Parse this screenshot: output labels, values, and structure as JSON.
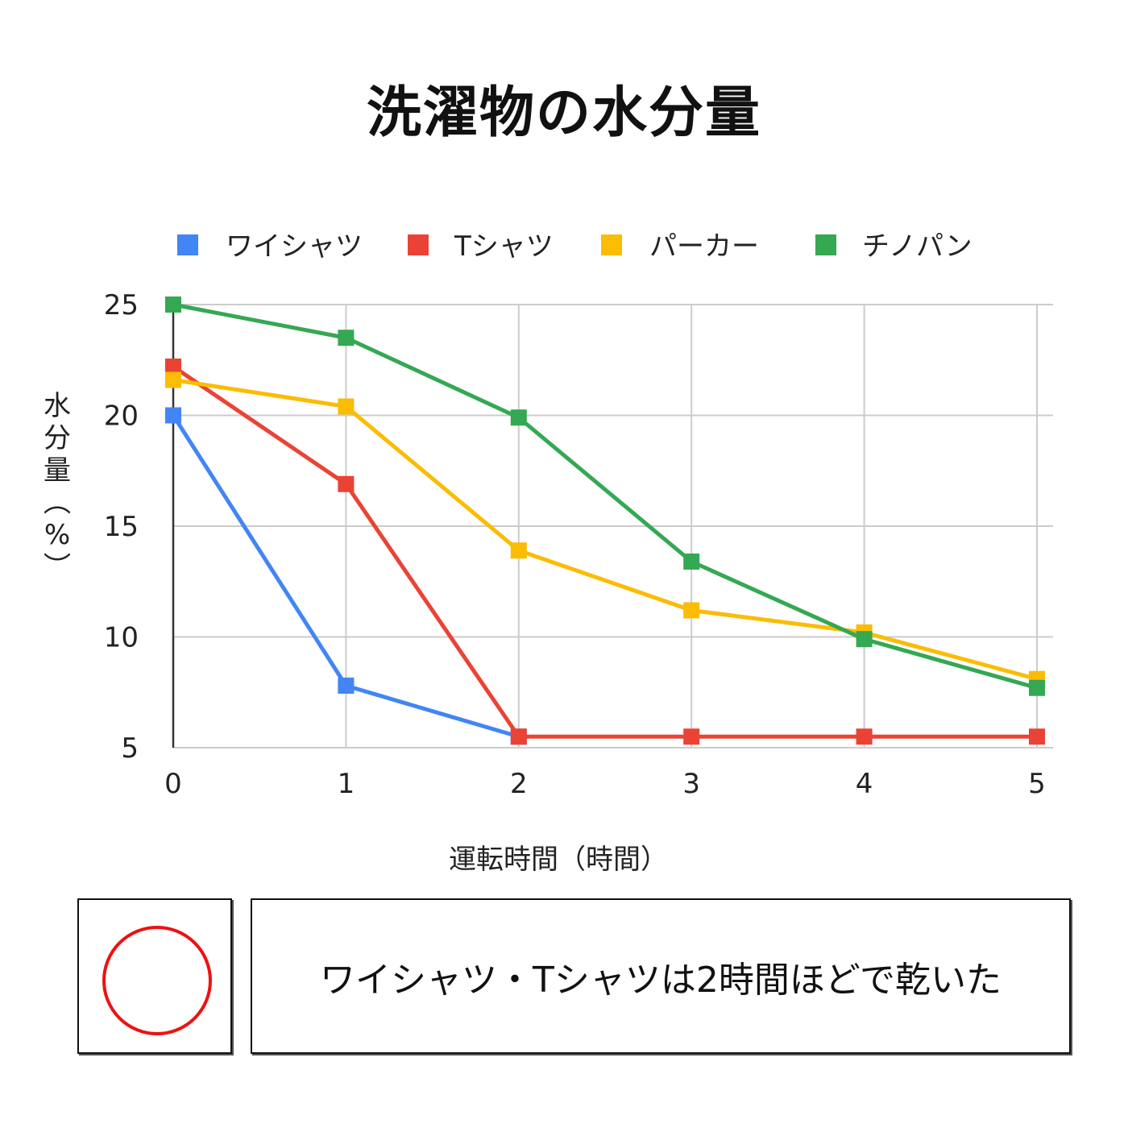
{
  "chart_data": {
    "type": "line",
    "title": "洗濯物の水分量",
    "xlabel": "運転時間（時間）",
    "ylabel": "水分量（%）",
    "x": [
      0,
      1,
      2,
      3,
      4,
      5
    ],
    "xlim": [
      0,
      5
    ],
    "ylim": [
      5,
      25
    ],
    "yticks": [
      5,
      10,
      15,
      20,
      25
    ],
    "xticks": [
      0,
      1,
      2,
      3,
      4,
      5
    ],
    "grid": true,
    "legend_position": "top",
    "marker": "square",
    "series": [
      {
        "name": "ワイシャツ",
        "color": "#4285f4",
        "values": [
          20,
          7.8,
          5.5,
          null,
          null,
          null
        ]
      },
      {
        "name": "Tシャツ",
        "color": "#ea4335",
        "values": [
          22.2,
          16.9,
          5.5,
          5.5,
          5.5,
          5.5
        ]
      },
      {
        "name": "パーカー",
        "color": "#fbbc04",
        "values": [
          21.6,
          20.4,
          13.9,
          11.2,
          10.2,
          8.1
        ]
      },
      {
        "name": "チノパン",
        "color": "#34a853",
        "values": [
          25,
          23.5,
          19.9,
          13.4,
          9.9,
          7.7
        ]
      }
    ]
  },
  "evaluation": {
    "mark": "circle-mark",
    "mark_color": "#ee1111",
    "note": "ワイシャツ・Tシャツは2時間ほどで乾いた"
  }
}
